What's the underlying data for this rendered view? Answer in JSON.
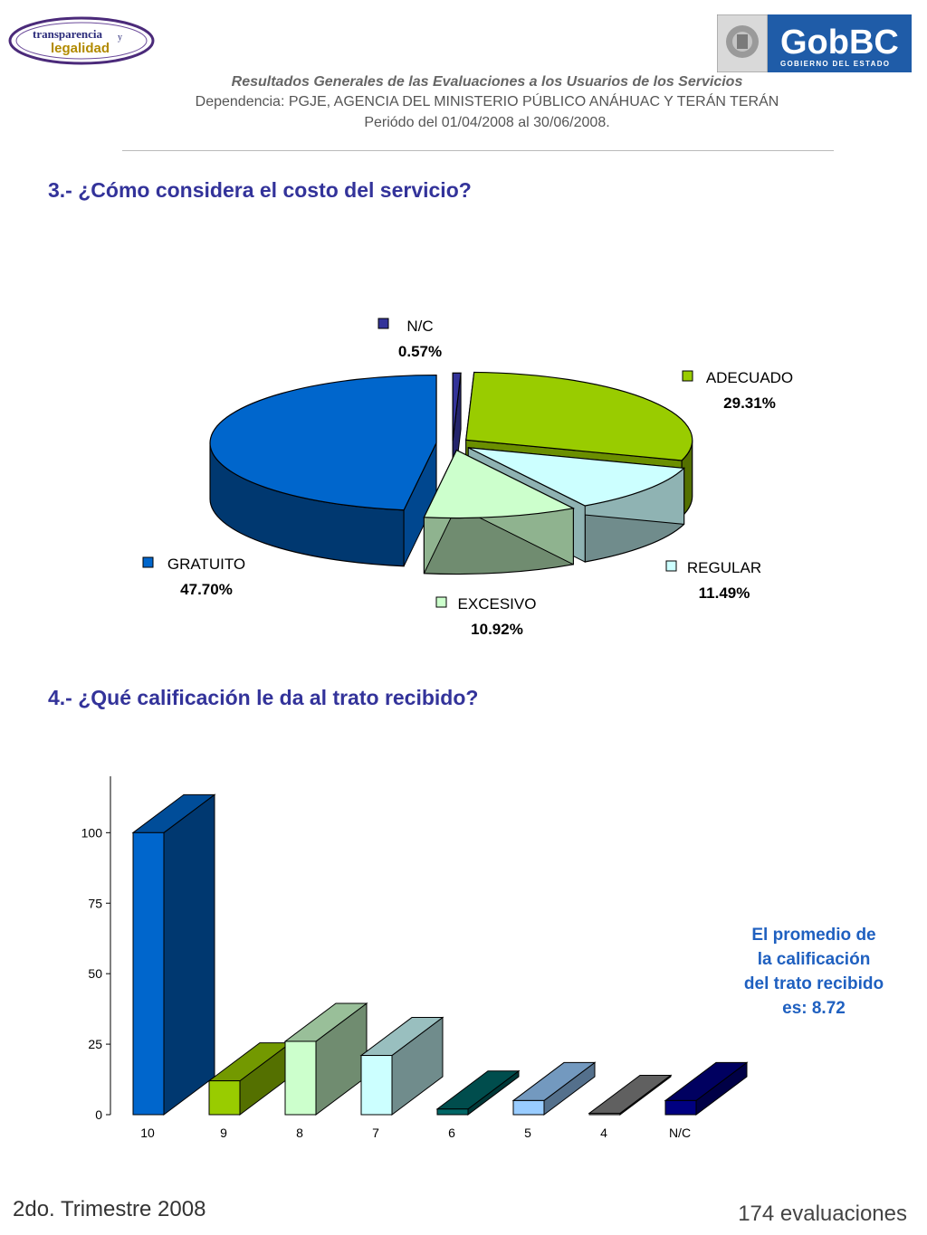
{
  "header": {
    "logo_left_line1": "transparencia",
    "logo_left_and": "y",
    "logo_left_line2": "legalidad",
    "logo_right_brand": "GobBC",
    "logo_right_sub": "GOBIERNO DEL ESTADO",
    "title": "Resultados Generales de las Evaluaciones a los Usuarios de los Servicios",
    "dependency": "Dependencia: PGJE, AGENCIA DEL MINISTERIO PÚBLICO ANÁHUAC Y TERÁN TERÁN",
    "period": "Periódo del 01/04/2008 al 30/06/2008."
  },
  "question3": "3.- ¿Cómo considera el costo del servicio?",
  "question4": "4.- ¿Qué calificación le da al trato recibido?",
  "chart_data": [
    {
      "type": "pie",
      "title": "3.- ¿Cómo considera el costo del servicio?",
      "slices": [
        {
          "label": "N/C",
          "value": 0.57,
          "text": "0.57%",
          "color": "#333399"
        },
        {
          "label": "ADECUADO",
          "value": 29.31,
          "text": "29.31%",
          "color": "#99cc00"
        },
        {
          "label": "REGULAR",
          "value": 11.49,
          "text": "11.49%",
          "color": "#ccffff"
        },
        {
          "label": "EXCESIVO",
          "value": 10.92,
          "text": "10.92%",
          "color": "#ccffcc"
        },
        {
          "label": "GRATUITO",
          "value": 47.7,
          "text": "47.70%",
          "color": "#0066cc"
        }
      ]
    },
    {
      "type": "bar",
      "title": "4.- ¿Qué calificación le da al trato recibido?",
      "categories": [
        "10",
        "9",
        "8",
        "7",
        "6",
        "5",
        "4",
        "N/C"
      ],
      "values": [
        100,
        12,
        26,
        21,
        2,
        5,
        0.5,
        5
      ],
      "colors": [
        "#0066cc",
        "#99cc00",
        "#ccffcc",
        "#ccffff",
        "#006666",
        "#99ccff",
        "#808080",
        "#000080"
      ],
      "ylim": [
        0,
        120
      ],
      "yticks": [
        0,
        25,
        50,
        75,
        100
      ]
    }
  ],
  "note": {
    "line1": "El promedio de",
    "line2": "la calificación",
    "line3": "del trato recibido",
    "line4": "es: 8.72"
  },
  "footer": {
    "quarter": "2do. Trimestre 2008",
    "evaluations": "174 evaluaciones"
  }
}
